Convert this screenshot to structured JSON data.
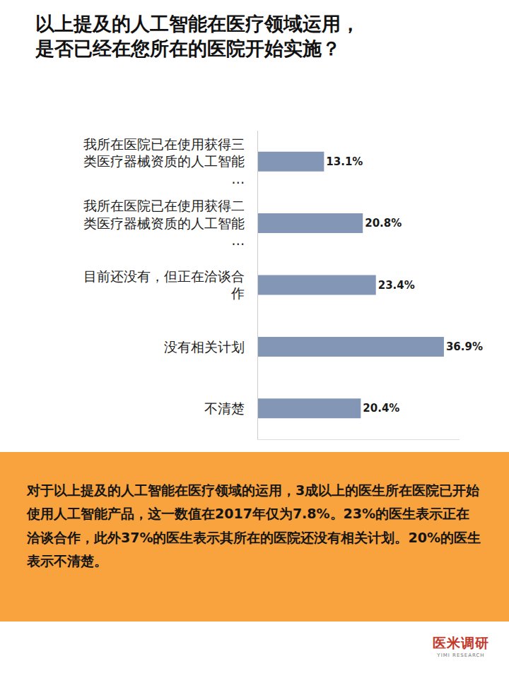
{
  "chart_data": {
    "type": "bar",
    "orientation": "horizontal",
    "title": "以上提及的人工智能在医疗领域运用，是否已经在您所在的医院开始实施？",
    "categories": [
      "我所在医院已在使用获得三类医疗器械资质的人工智能…",
      "我所在医院已在使用获得二类医疗器械资质的人工智能…",
      "目前还没有，但正在洽谈合作",
      "没有相关计划",
      "不清楚"
    ],
    "values": [
      13.1,
      20.8,
      23.4,
      36.9,
      20.4
    ],
    "value_labels": [
      "13.1%",
      "20.8%",
      "23.4%",
      "36.9%",
      "20.4%"
    ],
    "color": "#8396b6",
    "xlim": [
      0,
      40
    ],
    "xticks": [],
    "tick_labels": "y",
    "grid": false,
    "data_labels": true,
    "summary": "对于以上提及的人工智能在医疗领域的运用，3成以上的医生所在医院已开始使用人工智能产品，这一数值在2017年仅为7.8%。23%的医生表示正在洽谈合作，此外37%的医生表示其所在的医院还没有相关计划。20%的医生表示不清楚。",
    "source": "医米调研",
    "source_sub": "YIMI RESEARCH"
  }
}
